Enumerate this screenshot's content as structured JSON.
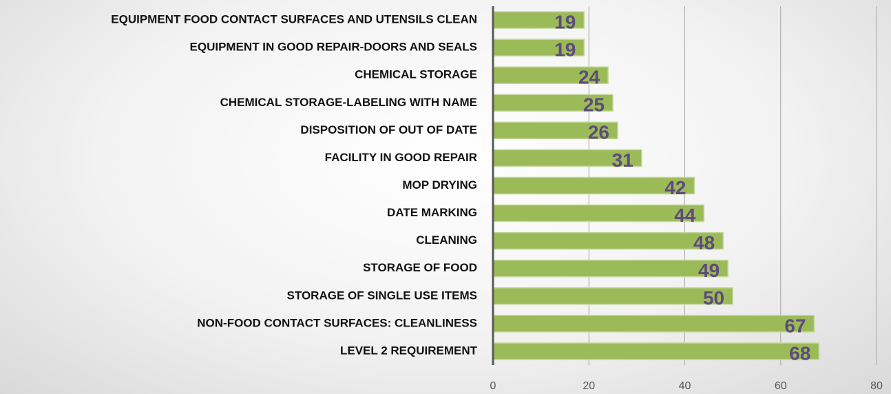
{
  "chart_data": {
    "type": "barh",
    "categories": [
      "EQUIPMENT FOOD CONTACT SURFACES AND UTENSILS CLEAN",
      "EQUIPMENT IN GOOD REPAIR-DOORS AND SEALS",
      "CHEMICAL STORAGE",
      "CHEMICAL STORAGE-LABELING WITH NAME",
      "DISPOSITION OF OUT OF DATE",
      "FACILITY IN GOOD REPAIR",
      "MOP DRYING",
      "DATE MARKING",
      "CLEANING",
      "STORAGE OF FOOD",
      "STORAGE OF SINGLE USE ITEMS",
      "NON-FOOD CONTACT SURFACES: CLEANLINESS",
      "LEVEL 2 REQUIREMENT"
    ],
    "values": [
      19,
      19,
      24,
      25,
      26,
      31,
      42,
      44,
      48,
      49,
      50,
      67,
      68
    ],
    "color": "#9bbb59",
    "xlim": [
      0,
      80
    ],
    "xticks": [
      0,
      20,
      40,
      60,
      80
    ],
    "grid": true
  }
}
